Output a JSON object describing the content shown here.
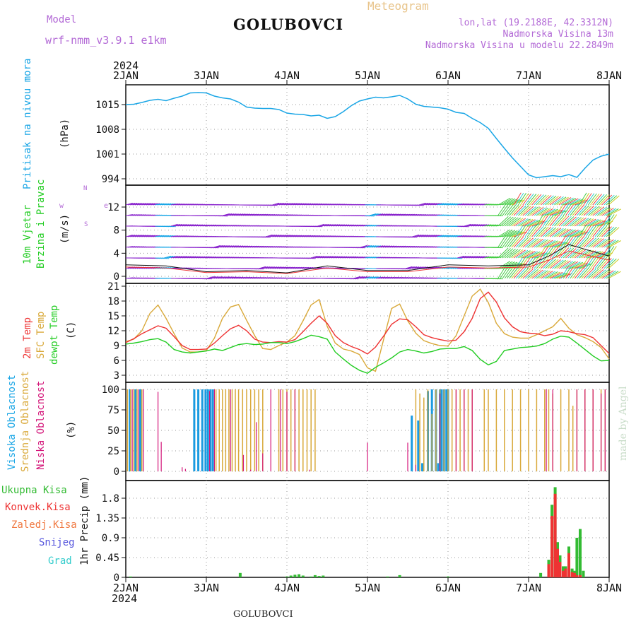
{
  "header": {
    "meteogram": "Meteogram",
    "model_label": "Model",
    "model_name": "wrf-nmm_v3.9.1  e1km",
    "station": "GOLUBOVCI",
    "lonlat": "lon,lat (19.2188E, 42.3312N)",
    "altitude": "Nadmorska Visina 13m",
    "model_altitude": "Nadmorska Visina u modelu 22.2849m",
    "footer_station": "GOLUBOVCI",
    "watermark": "made by Angel"
  },
  "colors": {
    "pressure": "#1aa6e6",
    "t2m": "#ee3333",
    "sfc": "#d9a93a",
    "dewpt": "#22cc22",
    "high_cloud": "#1b9be0",
    "mid_cloud": "#d9a93a",
    "low_cloud": "#d4177a",
    "precip_total": "#33bb33",
    "precip_conv": "#ee3333",
    "wind_purple": "#8822cc",
    "wind_blue": "#2255ee"
  },
  "x_axis": {
    "year_top": "2024",
    "year_bottom": "2024",
    "ticks": [
      "2JAN",
      "3JAN",
      "4JAN",
      "5JAN",
      "6JAN",
      "7JAN",
      "8JAN"
    ]
  },
  "panels": {
    "pressure": {
      "label1": "Pritisak na nivou mora",
      "unit": "(hPa)"
    },
    "wind": {
      "label1": "10m Vjetar",
      "label2": "Brzina i Pravac",
      "unit": "(m/s)",
      "compass_w": "w",
      "compass_e": "e",
      "compass_n": "N",
      "compass_s": "S"
    },
    "temp": {
      "label1": "2m Temp",
      "label2": "SFC Temp",
      "label3": "dewpt Temp",
      "unit": "(C)"
    },
    "cloud": {
      "label1": "Visoka Oblacnost",
      "label2": "Srednja Oblacnost",
      "label3": "Niska Oblacnost",
      "unit": "(%)"
    },
    "precip": {
      "label1": "Ukupna Kisa",
      "label2": "Konvek.Kisa",
      "label3": "Zaledj.Kisa",
      "label4": "Snijeg",
      "label5": "Grad",
      "unit": "1hr Precip (mm)"
    }
  },
  "chart_data": [
    {
      "type": "line",
      "title": "",
      "ylabel": "(hPa)",
      "ylim": [
        994,
        1022
      ],
      "yticks": [
        "1015",
        "1008",
        "1001",
        "994"
      ],
      "x_days": [
        0,
        0.1,
        0.2,
        0.3,
        0.4,
        0.5,
        0.6,
        0.7,
        0.8,
        0.9,
        1.0,
        1.1,
        1.2,
        1.3,
        1.4,
        1.5,
        1.6,
        1.7,
        1.8,
        1.9,
        2.0,
        2.1,
        2.2,
        2.3,
        2.4,
        2.5,
        2.6,
        2.7,
        2.8,
        2.9,
        3.0,
        3.1,
        3.2,
        3.3,
        3.4,
        3.5,
        3.6,
        3.7,
        3.8,
        3.9,
        4.0,
        4.1,
        4.2,
        4.3,
        4.4,
        4.5,
        4.6,
        4.7,
        4.8,
        4.9,
        5.0,
        5.1,
        5.2,
        5.3,
        5.4,
        5.5,
        5.6,
        5.7,
        5.8,
        5.9,
        6.0
      ],
      "series": [
        {
          "name": "Pritisak na nivou mora",
          "values": [
            1015.0,
            1015.1,
            1015.6,
            1016.2,
            1016.5,
            1016.1,
            1016.8,
            1017.4,
            1018.3,
            1018.4,
            1018.3,
            1017.4,
            1016.9,
            1016.6,
            1015.7,
            1014.3,
            1014.0,
            1013.9,
            1013.9,
            1013.6,
            1012.6,
            1012.3,
            1012.2,
            1011.8,
            1012.0,
            1011.1,
            1011.6,
            1013.0,
            1014.7,
            1016.0,
            1016.6,
            1017.1,
            1016.9,
            1017.2,
            1017.6,
            1016.6,
            1015.1,
            1014.5,
            1014.3,
            1014.1,
            1013.7,
            1012.8,
            1012.5,
            1011.1,
            1009.9,
            1008.3,
            1005.4,
            1002.6,
            999.9,
            997.5,
            995.1,
            994.3,
            994.6,
            994.9,
            994.6,
            995.2,
            994.4,
            997.0,
            999.3,
            1000.4,
            1001.0
          ]
        }
      ]
    },
    {
      "type": "line",
      "title": "",
      "ylabel": "(m/s)",
      "ylim": [
        0,
        14
      ],
      "yticks": [
        "12",
        "8",
        "4",
        "0"
      ],
      "x_days": [
        0,
        0.5,
        1.0,
        1.5,
        2.0,
        2.5,
        3.0,
        3.5,
        4.0,
        4.5,
        5.0,
        5.25,
        5.5,
        5.75,
        6.0
      ],
      "series": [
        {
          "name": "Brzina",
          "values": [
            2.0,
            1.8,
            0.8,
            1.0,
            0.6,
            1.8,
            1.0,
            1.0,
            2.0,
            1.8,
            2.0,
            3.5,
            5.5,
            4.5,
            3.5
          ]
        }
      ]
    },
    {
      "type": "line",
      "title": "",
      "ylabel": "(C)",
      "ylim": [
        2,
        21
      ],
      "yticks": [
        "21",
        "18",
        "15",
        "12",
        "9",
        "6",
        "3"
      ],
      "x_days": [
        0,
        0.1,
        0.2,
        0.3,
        0.4,
        0.5,
        0.6,
        0.7,
        0.8,
        0.9,
        1.0,
        1.1,
        1.2,
        1.3,
        1.4,
        1.5,
        1.6,
        1.7,
        1.8,
        1.9,
        2.0,
        2.1,
        2.2,
        2.3,
        2.4,
        2.5,
        2.6,
        2.7,
        2.8,
        2.9,
        3.0,
        3.1,
        3.2,
        3.3,
        3.4,
        3.5,
        3.6,
        3.7,
        3.8,
        3.9,
        4.0,
        4.1,
        4.2,
        4.3,
        4.4,
        4.5,
        4.6,
        4.7,
        4.8,
        4.9,
        5.0,
        5.1,
        5.2,
        5.3,
        5.4,
        5.5,
        5.6,
        5.7,
        5.8,
        5.9,
        6.0
      ],
      "series": [
        {
          "name": "2m Temp",
          "values": [
            9.6,
            10.4,
            11.4,
            12.2,
            13.0,
            12.5,
            10.8,
            9.0,
            8.2,
            8.2,
            8.3,
            9.5,
            11.0,
            12.4,
            13.1,
            12.0,
            10.3,
            9.7,
            9.6,
            9.8,
            9.7,
            10.2,
            11.8,
            13.5,
            15.0,
            13.5,
            11.0,
            9.6,
            8.8,
            8.2,
            7.3,
            8.7,
            10.9,
            13.3,
            14.4,
            14.2,
            12.8,
            11.2,
            10.6,
            10.2,
            9.9,
            10.1,
            11.8,
            14.5,
            18.5,
            19.8,
            17.8,
            14.6,
            12.8,
            11.8,
            11.5,
            11.4,
            11.0,
            11.3,
            12.0,
            11.8,
            11.4,
            11.2,
            10.6,
            9.0,
            7.4
          ]
        },
        {
          "name": "SFC Temp",
          "values": [
            9.8,
            10.3,
            12.0,
            15.5,
            17.2,
            14.5,
            11.4,
            8.5,
            7.7,
            7.7,
            8.0,
            10.5,
            14.5,
            16.8,
            17.3,
            14.1,
            11.0,
            8.4,
            8.2,
            9.0,
            9.7,
            11.0,
            14.0,
            17.2,
            18.3,
            12.9,
            9.5,
            8.3,
            7.9,
            7.2,
            4.5,
            3.8,
            10.2,
            16.5,
            17.4,
            14.0,
            11.5,
            10.0,
            9.4,
            9.0,
            8.9,
            11.0,
            15.0,
            19.0,
            20.4,
            17.7,
            13.5,
            11.4,
            10.7,
            10.5,
            10.5,
            11.2,
            12.0,
            12.8,
            14.5,
            12.5,
            11.2,
            10.6,
            9.8,
            8.6,
            6.3
          ]
        },
        {
          "name": "dewpt Temp",
          "values": [
            9.3,
            9.5,
            9.8,
            10.2,
            10.4,
            9.7,
            8.2,
            7.7,
            7.5,
            7.7,
            7.9,
            8.3,
            8.0,
            8.6,
            9.2,
            9.4,
            9.2,
            9.3,
            9.6,
            9.6,
            9.4,
            9.8,
            10.4,
            11.1,
            10.8,
            10.3,
            7.7,
            6.3,
            5.0,
            4.0,
            3.4,
            4.6,
            5.5,
            6.5,
            7.7,
            8.2,
            7.9,
            7.5,
            7.8,
            8.3,
            8.4,
            8.4,
            8.8,
            8.0,
            6.2,
            5.1,
            5.8,
            8.0,
            8.3,
            8.6,
            8.7,
            8.9,
            9.4,
            10.3,
            10.9,
            10.7,
            9.5,
            8.2,
            6.9,
            5.9,
            6.0
          ]
        }
      ]
    },
    {
      "type": "bar",
      "title": "",
      "ylabel": "(%)",
      "ylim": [
        0,
        100
      ],
      "yticks": [
        "100",
        "75",
        "50",
        "25",
        "0"
      ],
      "series": [
        {
          "name": "Visoka Oblacnost",
          "x_days": [
            0.05,
            0.12,
            0.18,
            0.85,
            0.9,
            0.95,
            0.99,
            1.02,
            1.05,
            1.08,
            3.55,
            3.63,
            3.68,
            3.75,
            3.8,
            3.85,
            3.88,
            3.9,
            3.92,
            3.95,
            3.98,
            4.0,
            6.0
          ],
          "values": [
            100,
            100,
            100,
            100,
            100,
            100,
            100,
            100,
            100,
            100,
            68,
            62,
            10,
            98,
            100,
            100,
            10,
            100,
            100,
            100,
            100,
            100,
            0
          ]
        },
        {
          "name": "Srednja Oblacnost",
          "x_days": [
            0.02,
            0.06,
            0.1,
            0.14,
            0.2,
            1.12,
            1.16,
            1.2,
            1.24,
            1.28,
            1.32,
            1.36,
            1.4,
            1.45,
            1.5,
            1.55,
            1.6,
            1.65,
            1.7,
            1.9,
            1.95,
            2.0,
            2.05,
            2.1,
            2.15,
            2.2,
            2.25,
            2.3,
            2.35,
            3.6,
            3.65,
            3.7,
            3.75,
            3.8,
            3.85,
            3.9,
            3.95,
            4.0,
            4.05,
            4.1,
            4.15,
            4.2,
            4.25,
            4.3,
            4.45,
            4.5,
            4.6,
            4.7,
            4.8,
            4.9,
            5.0,
            5.1,
            5.2,
            5.25,
            5.3,
            5.4,
            5.5,
            5.55,
            5.6,
            5.7,
            5.8,
            5.9,
            5.95
          ],
          "values": [
            100,
            100,
            100,
            100,
            100,
            100,
            100,
            100,
            100,
            100,
            100,
            100,
            100,
            100,
            100,
            100,
            100,
            100,
            100,
            100,
            100,
            100,
            100,
            100,
            100,
            100,
            100,
            100,
            100,
            100,
            95,
            90,
            100,
            70,
            100,
            100,
            100,
            100,
            100,
            100,
            100,
            100,
            100,
            100,
            100,
            100,
            100,
            100,
            100,
            100,
            100,
            100,
            100,
            100,
            95,
            100,
            100,
            80,
            100,
            100,
            100,
            100,
            100
          ]
        },
        {
          "name": "Niska Oblacnost",
          "x_days": [
            0.08,
            0.16,
            0.22,
            0.4,
            0.44,
            0.7,
            0.74,
            1.04,
            1.1,
            1.3,
            1.46,
            1.55,
            1.62,
            1.7,
            1.8,
            1.92,
            2.0,
            2.1,
            2.28,
            3.0,
            3.5,
            3.6,
            3.9,
            4.1,
            4.2,
            4.3,
            5.22,
            5.3,
            5.6,
            5.7,
            5.8,
            5.9,
            5.95
          ],
          "values": [
            100,
            100,
            100,
            97,
            36,
            5,
            3,
            98,
            100,
            100,
            20,
            2,
            60,
            22,
            100,
            100,
            97,
            100,
            2,
            35,
            35,
            8,
            95,
            100,
            100,
            100,
            100,
            100,
            100,
            100,
            100,
            95,
            100
          ]
        }
      ]
    },
    {
      "type": "bar",
      "title": "",
      "ylabel": "1hr Precip (mm)",
      "ylim": [
        0,
        2.2
      ],
      "yticks": [
        "1.8",
        "1.35",
        "0.9",
        "0.45",
        "0"
      ],
      "series": [
        {
          "name": "Ukupna Kisa",
          "x_days": [
            0.06,
            1.42,
            2.0,
            2.05,
            2.1,
            2.15,
            2.2,
            2.3,
            2.35,
            2.4,
            2.45,
            3.25,
            3.4,
            4.0,
            5.15,
            5.25,
            5.29,
            5.33,
            5.36,
            5.39,
            5.43,
            5.46,
            5.5,
            5.54,
            5.57,
            5.6,
            5.64,
            5.68
          ],
          "values": [
            0.02,
            0.1,
            0.02,
            0.04,
            0.06,
            0.07,
            0.04,
            0.02,
            0.05,
            0.03,
            0.04,
            0.02,
            0.05,
            0.02,
            0.1,
            0.4,
            1.65,
            2.05,
            0.8,
            0.5,
            0.25,
            0.25,
            0.7,
            0.2,
            0.15,
            0.9,
            1.1,
            0.15
          ]
        },
        {
          "name": "Konvek.Kisa",
          "x_days": [
            5.25,
            5.29,
            5.33,
            5.36,
            5.39,
            5.43,
            5.46,
            5.5,
            5.54,
            5.57,
            5.6,
            5.64
          ],
          "values": [
            0.3,
            1.4,
            1.9,
            0.65,
            0.35,
            0.15,
            0.2,
            0.55,
            0.12,
            0.1,
            0.05,
            0.05
          ]
        }
      ]
    }
  ]
}
